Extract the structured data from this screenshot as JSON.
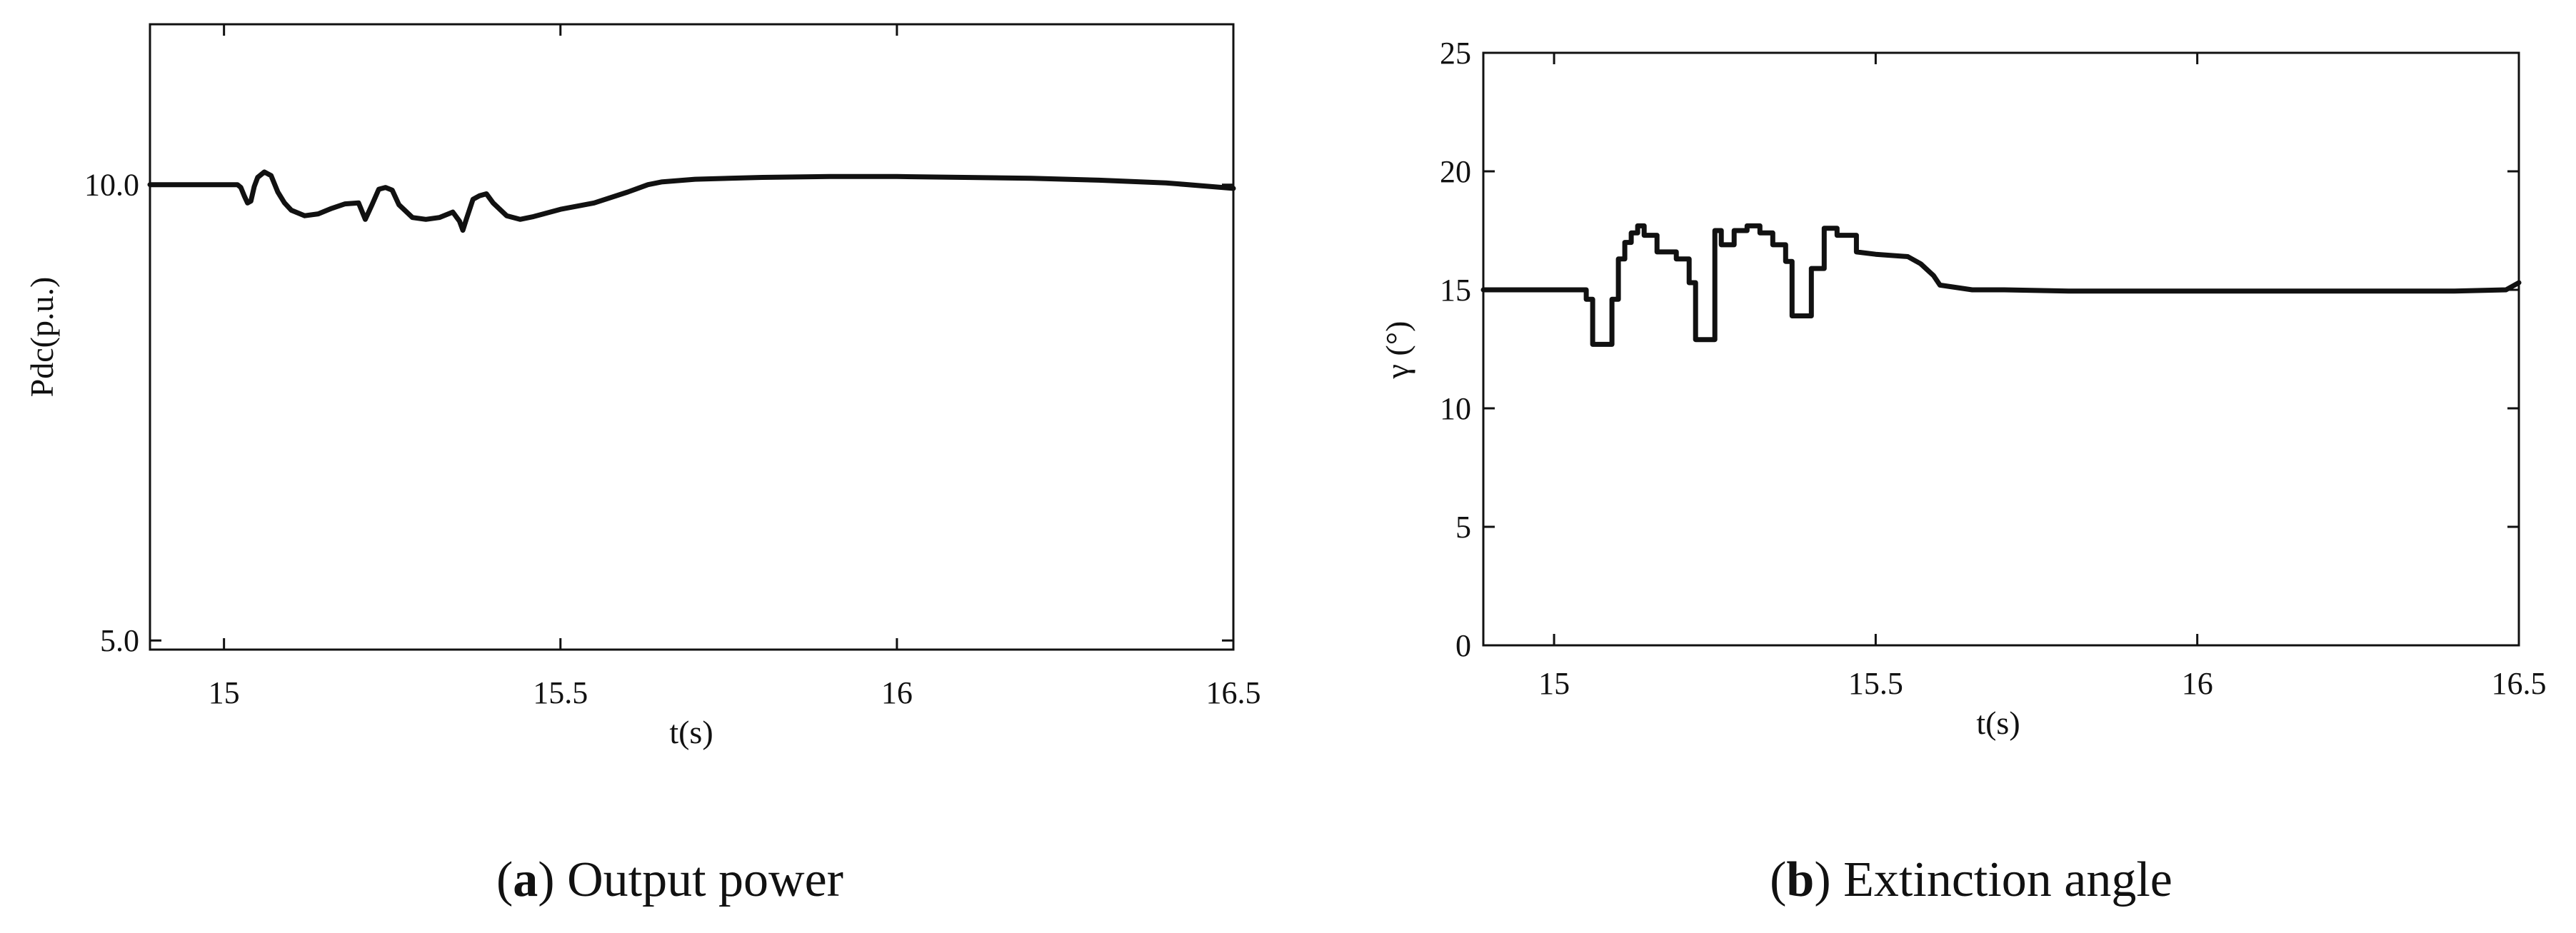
{
  "chart_data": [
    {
      "type": "line",
      "caption_letter": "a",
      "caption_text": "Output power",
      "xlabel": "t(s)",
      "ylabel": "Pdc(p.u.)",
      "xlim": [
        14.89,
        16.5
      ],
      "ylim": [
        4.9,
        11.76
      ],
      "xticks": [
        15,
        15.5,
        16,
        16.5
      ],
      "xtick_labels": [
        "15",
        "15.5",
        "16",
        "16.5"
      ],
      "yticks": [
        5.0,
        10.0
      ],
      "ytick_labels": [
        "5.0",
        "10.0"
      ],
      "grid": false,
      "series": [
        {
          "x": [
            14.89,
            14.95,
            15.0,
            15.02,
            15.025,
            15.03,
            15.035,
            15.04,
            15.045,
            15.05,
            15.06,
            15.07,
            15.08,
            15.09,
            15.1,
            15.12,
            15.14,
            15.16,
            15.18,
            15.2,
            15.21,
            15.22,
            15.23,
            15.24,
            15.25,
            15.26,
            15.28,
            15.3,
            15.32,
            15.34,
            15.35,
            15.355,
            15.36,
            15.37,
            15.38,
            15.39,
            15.4,
            15.42,
            15.44,
            15.46,
            15.5,
            15.55,
            15.6,
            15.63,
            15.65,
            15.7,
            15.8,
            15.9,
            16.0,
            16.1,
            16.2,
            16.3,
            16.4,
            16.5
          ],
          "y": [
            10.0,
            10.0,
            10.0,
            10.0,
            9.97,
            9.88,
            9.8,
            9.82,
            9.98,
            10.08,
            10.14,
            10.1,
            9.92,
            9.8,
            9.72,
            9.66,
            9.68,
            9.74,
            9.79,
            9.8,
            9.62,
            9.78,
            9.95,
            9.97,
            9.94,
            9.78,
            9.64,
            9.62,
            9.64,
            9.7,
            9.6,
            9.5,
            9.62,
            9.84,
            9.88,
            9.9,
            9.8,
            9.66,
            9.62,
            9.65,
            9.73,
            9.8,
            9.92,
            10.0,
            10.03,
            10.06,
            10.08,
            10.09,
            10.09,
            10.08,
            10.07,
            10.05,
            10.02,
            9.96
          ]
        }
      ]
    },
    {
      "type": "line",
      "caption_letter": "b",
      "caption_text": "Extinction angle",
      "xlabel": "t(s)",
      "ylabel": "γ (°)",
      "xlim": [
        14.89,
        16.5
      ],
      "ylim": [
        0,
        25
      ],
      "xticks": [
        15,
        15.5,
        16,
        16.5
      ],
      "xtick_labels": [
        "15",
        "15.5",
        "16",
        "16.5"
      ],
      "yticks": [
        0,
        5,
        10,
        15,
        20,
        25
      ],
      "ytick_labels": [
        "0",
        "5",
        "10",
        "15",
        "20",
        "25"
      ],
      "grid": false,
      "series": [
        {
          "x": [
            14.89,
            15.0,
            15.04,
            15.05,
            15.05,
            15.06,
            15.06,
            15.09,
            15.09,
            15.1,
            15.1,
            15.11,
            15.11,
            15.12,
            15.12,
            15.13,
            15.13,
            15.14,
            15.14,
            15.16,
            15.16,
            15.19,
            15.19,
            15.21,
            15.21,
            15.22,
            15.22,
            15.25,
            15.25,
            15.26,
            15.26,
            15.28,
            15.28,
            15.3,
            15.3,
            15.32,
            15.32,
            15.34,
            15.34,
            15.36,
            15.36,
            15.37,
            15.37,
            15.4,
            15.4,
            15.42,
            15.42,
            15.44,
            15.44,
            15.47,
            15.47,
            15.5,
            15.55,
            15.57,
            15.59,
            15.6,
            15.65,
            15.7,
            15.8,
            15.9,
            16.0,
            16.1,
            16.2,
            16.3,
            16.4,
            16.48,
            16.5
          ],
          "y": [
            15.0,
            15.0,
            15.0,
            15.0,
            14.6,
            14.6,
            12.7,
            12.7,
            14.6,
            14.6,
            16.3,
            16.3,
            17.0,
            17.0,
            17.4,
            17.4,
            17.7,
            17.7,
            17.3,
            17.3,
            16.6,
            16.6,
            16.3,
            16.3,
            15.3,
            15.3,
            12.9,
            12.9,
            17.5,
            17.5,
            16.9,
            16.9,
            17.5,
            17.5,
            17.7,
            17.7,
            17.4,
            17.4,
            16.9,
            16.9,
            16.2,
            16.2,
            13.9,
            13.9,
            15.9,
            15.9,
            17.6,
            17.6,
            17.3,
            17.3,
            16.6,
            16.5,
            16.4,
            16.1,
            15.6,
            15.2,
            15.0,
            15.0,
            14.95,
            14.95,
            14.95,
            14.95,
            14.95,
            14.95,
            14.95,
            15.0,
            15.3
          ]
        }
      ]
    }
  ]
}
